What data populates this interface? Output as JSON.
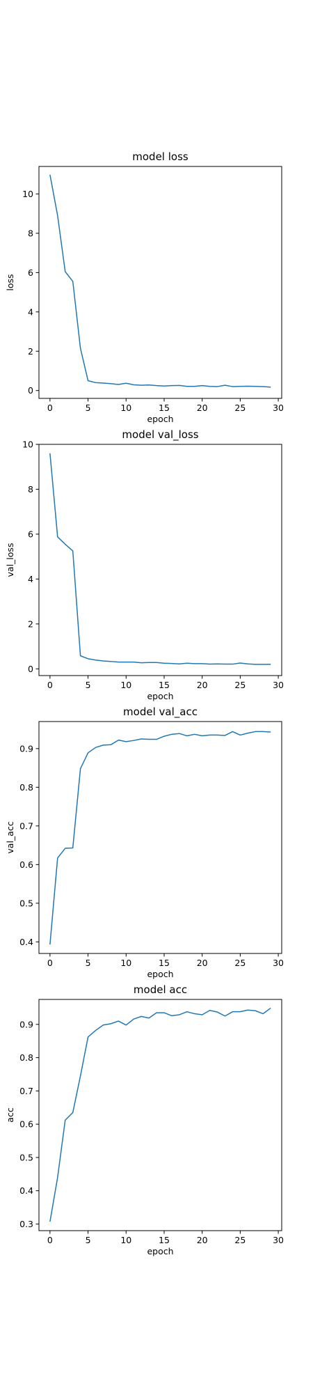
{
  "chart_data": [
    {
      "type": "line",
      "title": "model loss",
      "xlabel": "epoch",
      "ylabel": "loss",
      "xlim": [
        -1.45,
        30.45
      ],
      "ylim": [
        -0.4,
        11.4
      ],
      "xticks": [
        0,
        5,
        10,
        15,
        20,
        25,
        30
      ],
      "yticks": [
        0,
        2,
        4,
        6,
        8,
        10
      ],
      "series_color": "#1f77b4",
      "grid": false,
      "x": [
        0,
        1,
        2,
        3,
        4,
        5,
        6,
        7,
        8,
        9,
        10,
        11,
        12,
        13,
        14,
        15,
        16,
        17,
        18,
        19,
        20,
        21,
        22,
        23,
        24,
        25,
        26,
        27,
        28,
        29
      ],
      "y": [
        10.98,
        8.9,
        6.05,
        5.55,
        2.15,
        0.5,
        0.4,
        0.38,
        0.35,
        0.31,
        0.37,
        0.29,
        0.27,
        0.28,
        0.25,
        0.23,
        0.25,
        0.26,
        0.21,
        0.21,
        0.25,
        0.21,
        0.2,
        0.27,
        0.2,
        0.21,
        0.22,
        0.21,
        0.2,
        0.17
      ]
    },
    {
      "type": "line",
      "title": "model val_loss",
      "xlabel": "epoch",
      "ylabel": "val_loss",
      "xlim": [
        -1.45,
        30.45
      ],
      "ylim": [
        -0.3,
        10.0
      ],
      "xticks": [
        0,
        5,
        10,
        15,
        20,
        25,
        30
      ],
      "yticks": [
        0,
        2,
        4,
        6,
        8,
        10
      ],
      "series_color": "#1f77b4",
      "grid": false,
      "x": [
        0,
        1,
        2,
        3,
        4,
        5,
        6,
        7,
        8,
        9,
        10,
        11,
        12,
        13,
        14,
        15,
        16,
        17,
        18,
        19,
        20,
        21,
        22,
        23,
        24,
        25,
        26,
        27,
        28,
        29
      ],
      "y": [
        9.6,
        5.88,
        5.55,
        5.25,
        0.58,
        0.45,
        0.39,
        0.35,
        0.33,
        0.3,
        0.3,
        0.3,
        0.27,
        0.28,
        0.28,
        0.25,
        0.24,
        0.22,
        0.25,
        0.23,
        0.23,
        0.21,
        0.22,
        0.21,
        0.21,
        0.26,
        0.22,
        0.2,
        0.2,
        0.2
      ]
    },
    {
      "type": "line",
      "title": "model val_acc",
      "xlabel": "epoch",
      "ylabel": "val_acc",
      "xlim": [
        -1.45,
        30.45
      ],
      "ylim": [
        0.37,
        0.97
      ],
      "xticks": [
        0,
        5,
        10,
        15,
        20,
        25,
        30
      ],
      "yticks": [
        0.4,
        0.5,
        0.6,
        0.7,
        0.8,
        0.9
      ],
      "series_color": "#1f77b4",
      "grid": false,
      "x": [
        0,
        1,
        2,
        3,
        4,
        5,
        6,
        7,
        8,
        9,
        10,
        11,
        12,
        13,
        14,
        15,
        16,
        17,
        18,
        19,
        20,
        21,
        22,
        23,
        24,
        25,
        26,
        27,
        28,
        29
      ],
      "y": [
        0.393,
        0.617,
        0.642,
        0.643,
        0.848,
        0.889,
        0.903,
        0.909,
        0.91,
        0.922,
        0.918,
        0.921,
        0.925,
        0.924,
        0.924,
        0.932,
        0.937,
        0.939,
        0.933,
        0.937,
        0.933,
        0.935,
        0.935,
        0.934,
        0.944,
        0.935,
        0.94,
        0.944,
        0.944,
        0.943
      ]
    },
    {
      "type": "line",
      "title": "model acc",
      "xlabel": "epoch",
      "ylabel": "acc",
      "xlim": [
        -1.45,
        30.45
      ],
      "ylim": [
        0.28,
        0.975
      ],
      "xticks": [
        0,
        5,
        10,
        15,
        20,
        25,
        30
      ],
      "yticks": [
        0.3,
        0.4,
        0.5,
        0.6,
        0.7,
        0.8,
        0.9
      ],
      "series_color": "#1f77b4",
      "grid": false,
      "x": [
        0,
        1,
        2,
        3,
        4,
        5,
        6,
        7,
        8,
        9,
        10,
        11,
        12,
        13,
        14,
        15,
        16,
        17,
        18,
        19,
        20,
        21,
        22,
        23,
        24,
        25,
        26,
        27,
        28,
        29
      ],
      "y": [
        0.307,
        0.44,
        0.612,
        0.635,
        0.745,
        0.862,
        0.882,
        0.898,
        0.902,
        0.91,
        0.898,
        0.916,
        0.924,
        0.919,
        0.935,
        0.935,
        0.926,
        0.929,
        0.938,
        0.932,
        0.929,
        0.942,
        0.937,
        0.925,
        0.938,
        0.938,
        0.943,
        0.941,
        0.932,
        0.949
      ]
    }
  ]
}
